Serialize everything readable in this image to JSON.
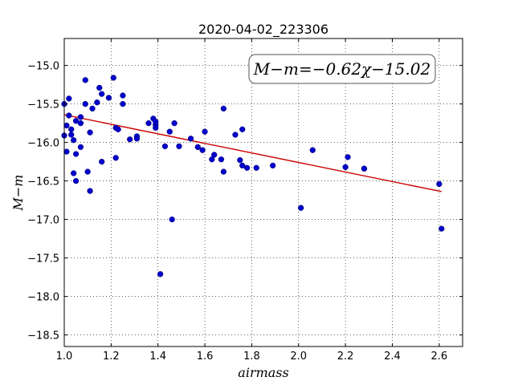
{
  "chart_data": {
    "type": "scatter",
    "title": "2020-04-02_223306",
    "xlabel": "airmass",
    "ylabel": "M−m",
    "xlim": [
      1.0,
      2.7
    ],
    "ylim": [
      -18.65,
      -14.65
    ],
    "y_inverted": true,
    "grid": true,
    "x_ticks": [
      1.0,
      1.2,
      1.4,
      1.6,
      1.8,
      2.0,
      2.2,
      2.4,
      2.6
    ],
    "x_tick_labels": [
      "1.0",
      "1.2",
      "1.4",
      "1.6",
      "1.8",
      "2.0",
      "2.2",
      "2.4",
      "2.6"
    ],
    "y_ticks": [
      -15.0,
      -15.5,
      -16.0,
      -16.5,
      -17.0,
      -17.5,
      -18.0,
      -18.5
    ],
    "y_tick_labels": [
      "−15.0",
      "−15.5",
      "−16.0",
      "−16.5",
      "−17.0",
      "−17.5",
      "−18.0",
      "−18.5"
    ],
    "annotation": "M−m=−0.62χ−15.02",
    "fit": {
      "slope": -0.62,
      "intercept": -15.02,
      "x_range": [
        1.0,
        2.61
      ],
      "color": "#cc0000"
    },
    "marker_color": "#0000cc",
    "points": [
      {
        "x": 1.0,
        "y": -15.5
      },
      {
        "x": 1.0,
        "y": -15.91
      },
      {
        "x": 1.01,
        "y": -15.78
      },
      {
        "x": 1.01,
        "y": -16.12
      },
      {
        "x": 1.02,
        "y": -15.43
      },
      {
        "x": 1.02,
        "y": -15.65
      },
      {
        "x": 1.03,
        "y": -15.83
      },
      {
        "x": 1.03,
        "y": -15.9
      },
      {
        "x": 1.04,
        "y": -15.97
      },
      {
        "x": 1.04,
        "y": -16.4
      },
      {
        "x": 1.05,
        "y": -15.72
      },
      {
        "x": 1.05,
        "y": -16.5
      },
      {
        "x": 1.05,
        "y": -16.15
      },
      {
        "x": 1.07,
        "y": -15.67
      },
      {
        "x": 1.07,
        "y": -15.75
      },
      {
        "x": 1.07,
        "y": -16.06
      },
      {
        "x": 1.09,
        "y": -15.19
      },
      {
        "x": 1.09,
        "y": -15.5
      },
      {
        "x": 1.1,
        "y": -16.38
      },
      {
        "x": 1.11,
        "y": -16.63
      },
      {
        "x": 1.11,
        "y": -15.87
      },
      {
        "x": 1.12,
        "y": -15.56
      },
      {
        "x": 1.14,
        "y": -15.48
      },
      {
        "x": 1.15,
        "y": -15.29
      },
      {
        "x": 1.16,
        "y": -15.37
      },
      {
        "x": 1.16,
        "y": -16.25
      },
      {
        "x": 1.19,
        "y": -15.42
      },
      {
        "x": 1.21,
        "y": -15.16
      },
      {
        "x": 1.22,
        "y": -15.81
      },
      {
        "x": 1.22,
        "y": -16.2
      },
      {
        "x": 1.23,
        "y": -15.83
      },
      {
        "x": 1.25,
        "y": -15.39
      },
      {
        "x": 1.25,
        "y": -15.5
      },
      {
        "x": 1.28,
        "y": -15.96
      },
      {
        "x": 1.31,
        "y": -15.92
      },
      {
        "x": 1.31,
        "y": -15.95
      },
      {
        "x": 1.36,
        "y": -15.75
      },
      {
        "x": 1.38,
        "y": -15.69
      },
      {
        "x": 1.39,
        "y": -15.77
      },
      {
        "x": 1.39,
        "y": -15.81
      },
      {
        "x": 1.39,
        "y": -15.73
      },
      {
        "x": 1.41,
        "y": -17.71
      },
      {
        "x": 1.43,
        "y": -16.05
      },
      {
        "x": 1.45,
        "y": -15.86
      },
      {
        "x": 1.46,
        "y": -17.0
      },
      {
        "x": 1.47,
        "y": -15.75
      },
      {
        "x": 1.49,
        "y": -16.05
      },
      {
        "x": 1.54,
        "y": -15.95
      },
      {
        "x": 1.57,
        "y": -16.06
      },
      {
        "x": 1.59,
        "y": -16.1
      },
      {
        "x": 1.6,
        "y": -15.86
      },
      {
        "x": 1.63,
        "y": -16.22
      },
      {
        "x": 1.64,
        "y": -16.16
      },
      {
        "x": 1.67,
        "y": -16.22
      },
      {
        "x": 1.68,
        "y": -15.56
      },
      {
        "x": 1.68,
        "y": -16.38
      },
      {
        "x": 1.73,
        "y": -15.9
      },
      {
        "x": 1.75,
        "y": -16.23
      },
      {
        "x": 1.76,
        "y": -16.3
      },
      {
        "x": 1.76,
        "y": -15.83
      },
      {
        "x": 1.78,
        "y": -16.33
      },
      {
        "x": 1.82,
        "y": -16.33
      },
      {
        "x": 1.89,
        "y": -16.3
      },
      {
        "x": 2.01,
        "y": -16.85
      },
      {
        "x": 2.06,
        "y": -16.1
      },
      {
        "x": 2.2,
        "y": -16.32
      },
      {
        "x": 2.21,
        "y": -16.19
      },
      {
        "x": 2.28,
        "y": -16.34
      },
      {
        "x": 2.28,
        "y": -16.34
      },
      {
        "x": 2.6,
        "y": -16.54
      },
      {
        "x": 2.61,
        "y": -17.12
      }
    ]
  }
}
